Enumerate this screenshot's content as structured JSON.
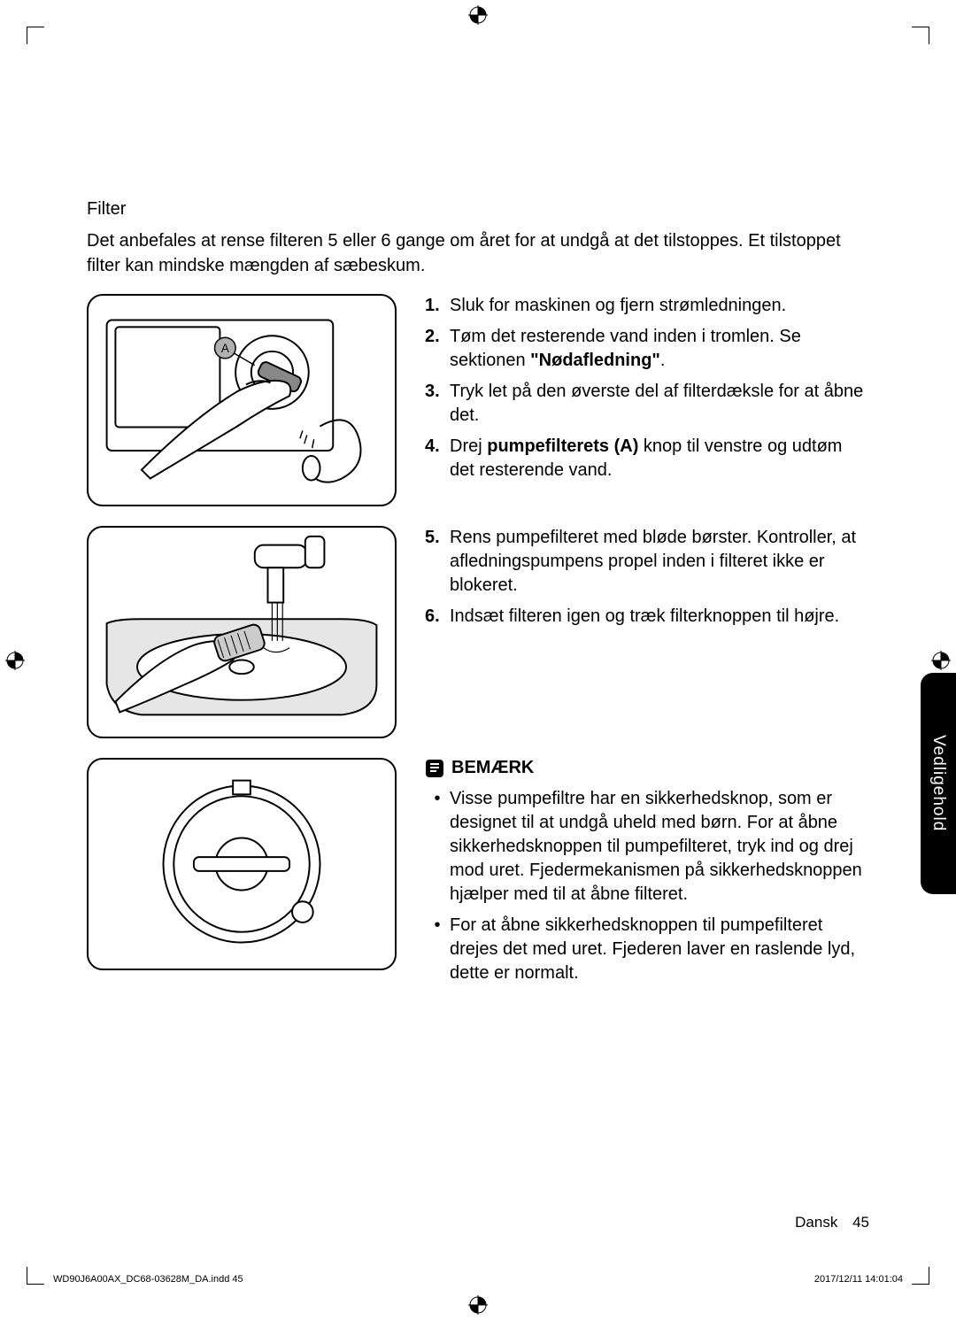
{
  "section_title": "Filter",
  "intro": "Det anbefales at rense filteren 5 eller 6 gange om året for at undgå at det tilstoppes. Et tilstoppet filter kan mindske mængden af sæbeskum.",
  "fig1_label": "A",
  "steps_a": [
    {
      "n": "1.",
      "t": "Sluk for maskinen og fjern strømledningen."
    },
    {
      "n": "2.",
      "t_pre": "Tøm det resterende vand inden i tromlen. Se sektionen ",
      "t_bold": "\"Nødafledning\"",
      "t_post": "."
    },
    {
      "n": "3.",
      "t": "Tryk let på den øverste del af filterdæksle for at åbne det."
    },
    {
      "n": "4.",
      "t_pre": "Drej ",
      "t_bold": "pumpefilterets (A)",
      "t_post": " knop til venstre og udtøm det resterende vand."
    }
  ],
  "steps_b": [
    {
      "n": "5.",
      "t": "Rens pumpefilteret med bløde børster. Kontroller, at afledningspumpens propel inden i filteret ikke er blokeret."
    },
    {
      "n": "6.",
      "t": "Indsæt filteren igen og træk filterknoppen til højre."
    }
  ],
  "note_label": "BEMÆRK",
  "notes": [
    "Visse pumpefiltre har en sikkerhedsknop, som er designet til at undgå uheld med børn. For at åbne sikkerhedsknoppen til pumpefilteret, tryk ind og drej mod uret. Fjedermekanismen på sikkerhedsknoppen hjælper med til at åbne filteret.",
    "For at åbne sikkerhedsknoppen til pumpefilteret drejes det med uret. Fjederen laver en raslende lyd, dette er normalt."
  ],
  "side_tab": "Vedligehold",
  "footer_lang": "Dansk",
  "footer_page": "45",
  "footer_file": "WD90J6A00AX_DC68-03628M_DA.indd   45",
  "footer_date": "2017/12/11   14:01:04"
}
